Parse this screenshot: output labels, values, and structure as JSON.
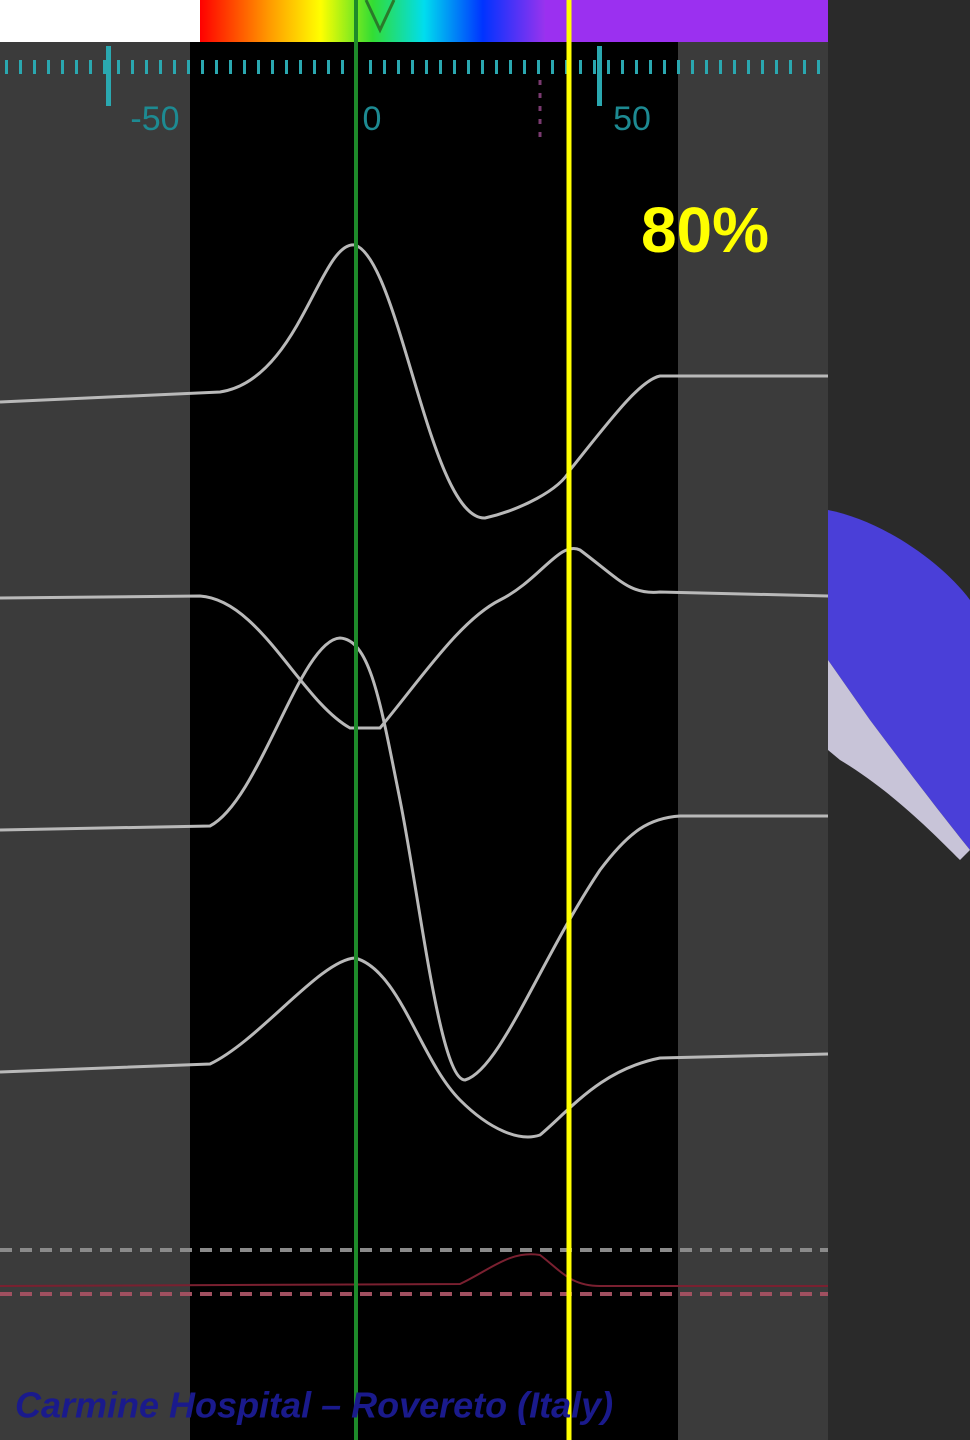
{
  "scale": {
    "labels": [
      "-50",
      "0",
      "50"
    ]
  },
  "annotation": "80%",
  "footer": "Carmine Hospital – Rovereto (Italy)"
}
